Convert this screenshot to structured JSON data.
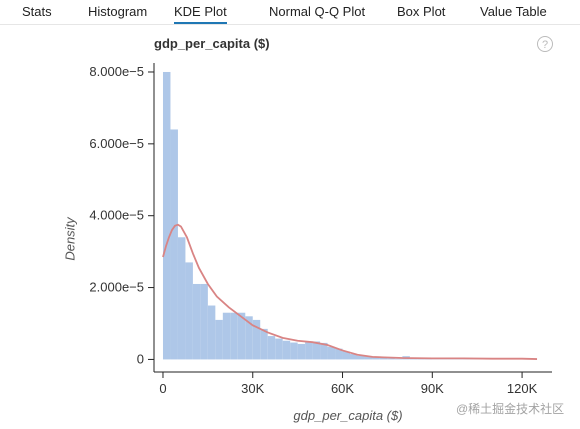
{
  "tabs": [
    {
      "label": "Stats",
      "active": false
    },
    {
      "label": "Histogram",
      "active": false
    },
    {
      "label": "KDE Plot",
      "active": true
    },
    {
      "label": "Normal Q-Q Plot",
      "active": false
    },
    {
      "label": "Box Plot",
      "active": false
    },
    {
      "label": "Value Table",
      "active": false
    }
  ],
  "colors": {
    "bar_fill": "#aec7e8",
    "kde_line": "#d98484",
    "active_tab_underline": "#1f77b4"
  },
  "chart_data": {
    "type": "bar",
    "title": "gdp_per_capita ($)",
    "xlabel": "gdp_per_capita ($)",
    "ylabel": "Density",
    "xlim": [
      -3000,
      130000
    ],
    "ylim": [
      -3.5e-06,
      8.25e-05
    ],
    "x_ticks": [
      0,
      30000,
      60000,
      90000,
      120000
    ],
    "x_tick_labels": [
      "0",
      "30K",
      "60K",
      "90K",
      "120K"
    ],
    "y_ticks": [
      0,
      2e-05,
      4e-05,
      6e-05,
      8e-05
    ],
    "y_tick_labels": [
      "0",
      "2.000e−5",
      "4.000e−5",
      "6.000e−5",
      "8.000e−5"
    ],
    "bin_edges": [
      0,
      2500,
      5000,
      7500,
      10000,
      12500,
      15000,
      17500,
      20000,
      22500,
      25000,
      27500,
      30000,
      32500,
      35000,
      37500,
      40000,
      42500,
      45000,
      47500,
      50000,
      52500,
      55000,
      57500,
      60000,
      62500,
      65000,
      67500,
      70000,
      72500,
      75000,
      77500,
      80000,
      82500,
      85000,
      87500,
      90000,
      92500,
      95000,
      97500,
      100000,
      102500,
      105000,
      107500,
      110000,
      112500,
      115000,
      117500,
      120000,
      122500,
      125000
    ],
    "bar_values": [
      8e-05,
      6.4e-05,
      3.4e-05,
      2.7e-05,
      2.1e-05,
      2.1e-05,
      1.5e-05,
      1.1e-05,
      1.3e-05,
      1.3e-05,
      1.3e-05,
      1.2e-05,
      1.1e-05,
      8.5e-06,
      6.5e-06,
      5.8e-06,
      5.2e-06,
      4.7e-06,
      4.3e-06,
      5e-06,
      5e-06,
      4.6e-06,
      3.5e-06,
      3e-06,
      2.2e-06,
      1.5e-06,
      1e-06,
      8e-07,
      6e-07,
      4e-07,
      3e-07,
      2e-07,
      9e-07,
      3e-07,
      2e-07,
      2e-07,
      1e-07,
      1e-07,
      1e-07,
      1e-07,
      1e-07,
      1e-07,
      1e-07,
      1e-07,
      1e-07,
      1e-07,
      1e-07,
      1e-07,
      1e-07,
      1e-07
    ],
    "kde_x": [
      0,
      1000,
      2000,
      3000,
      4000,
      5000,
      6000,
      8000,
      10000,
      12000,
      15000,
      18000,
      22000,
      26000,
      30000,
      35000,
      40000,
      45000,
      50000,
      55000,
      60000,
      65000,
      70000,
      80000,
      90000,
      100000,
      110000,
      120000,
      125000
    ],
    "kde_y": [
      2.85e-05,
      3.15e-05,
      3.4e-05,
      3.6e-05,
      3.72e-05,
      3.75e-05,
      3.7e-05,
      3.4e-05,
      2.95e-05,
      2.55e-05,
      2.1e-05,
      1.75e-05,
      1.45e-05,
      1.2e-05,
      9.5e-06,
      7.5e-06,
      6e-06,
      5.2e-06,
      4.8e-06,
      4e-06,
      2.5e-06,
      1.3e-06,
      7e-07,
      4e-07,
      3e-07,
      3e-07,
      2e-07,
      2e-07,
      1e-07
    ]
  },
  "watermark_text": "@稀土掘金技术社区"
}
